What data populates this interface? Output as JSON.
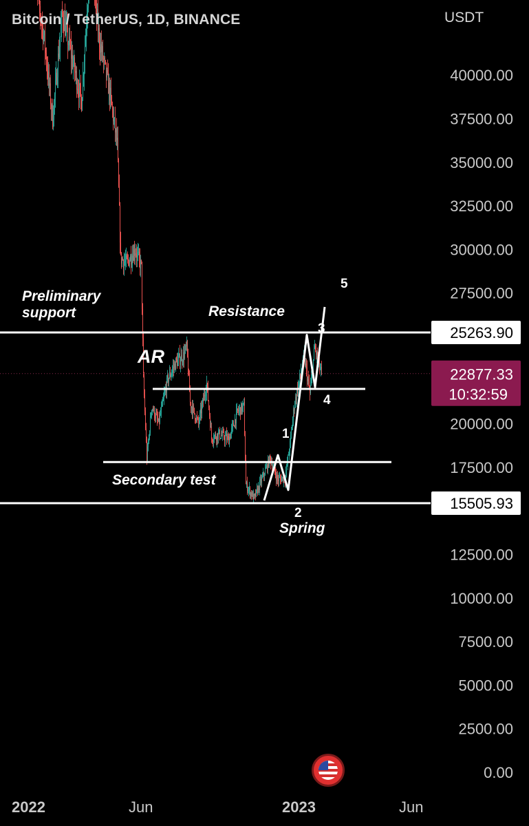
{
  "header": {
    "title": "Bitcoin / TetherUS, 1D, BINANCE",
    "unit": "USDT"
  },
  "colors": {
    "background": "#000000",
    "up": "#26a69a",
    "down": "#ef5350",
    "annotation": "#ffffff",
    "axis_text": "#c9c9c9",
    "current_price_bg": "#8b1a4f"
  },
  "chart_data": {
    "type": "candlestick",
    "symbol": "Bitcoin / TetherUS",
    "timeframe": "1D",
    "exchange": "BINANCE",
    "y_axis": {
      "unit": "USDT",
      "ticks": [
        "40000.00",
        "37500.00",
        "35000.00",
        "32500.00",
        "30000.00",
        "27500.00",
        "20000.00",
        "17500.00",
        "12500.00",
        "10000.00",
        "7500.00",
        "5000.00",
        "2500.00",
        "0.00"
      ],
      "range": [
        0,
        42500
      ]
    },
    "x_axis": {
      "ticks": [
        "2022",
        "Jun",
        "2023",
        "Jun"
      ]
    },
    "price_path": [
      [
        "2022-01-03",
        46500
      ],
      [
        "2022-01-20",
        42000
      ],
      [
        "2022-02-01",
        37500
      ],
      [
        "2022-02-15",
        43500
      ],
      [
        "2022-03-01",
        41000
      ],
      [
        "2022-03-15",
        38500
      ],
      [
        "2022-03-28",
        47000
      ],
      [
        "2022-04-10",
        42000
      ],
      [
        "2022-04-25",
        39000
      ],
      [
        "2022-05-06",
        36000
      ],
      [
        "2022-05-11",
        29500
      ],
      [
        "2022-05-20",
        29200
      ],
      [
        "2022-06-01",
        30000
      ],
      [
        "2022-06-10",
        29000
      ],
      [
        "2022-06-13",
        22500
      ],
      [
        "2022-06-18",
        18000
      ],
      [
        "2022-06-25",
        21000
      ],
      [
        "2022-07-05",
        20000
      ],
      [
        "2022-07-18",
        22500
      ],
      [
        "2022-07-30",
        23500
      ],
      [
        "2022-08-10",
        23900
      ],
      [
        "2022-08-15",
        24400
      ],
      [
        "2022-08-20",
        21200
      ],
      [
        "2022-09-01",
        20000
      ],
      [
        "2022-09-13",
        22300
      ],
      [
        "2022-09-20",
        19200
      ],
      [
        "2022-10-01",
        19400
      ],
      [
        "2022-10-15",
        19100
      ],
      [
        "2022-10-28",
        20700
      ],
      [
        "2022-11-06",
        21000
      ],
      [
        "2022-11-09",
        16500
      ],
      [
        "2022-11-21",
        15700
      ],
      [
        "2022-12-05",
        17100
      ],
      [
        "2022-12-14",
        18000
      ],
      [
        "2022-12-25",
        16800
      ],
      [
        "2023-01-05",
        16900
      ],
      [
        "2023-01-12",
        18800
      ],
      [
        "2023-01-18",
        21000
      ],
      [
        "2023-01-28",
        23000
      ],
      [
        "2023-02-02",
        23800
      ],
      [
        "2023-02-10",
        21700
      ],
      [
        "2023-02-17",
        24400
      ],
      [
        "2023-02-24",
        23200
      ],
      [
        "2023-02-27",
        22877
      ]
    ],
    "current_price": {
      "value": "22877.33",
      "countdown": "10:32:59"
    },
    "levels": [
      {
        "name": "resistance",
        "value": 25263.9,
        "label": "25263.90"
      },
      {
        "name": "low",
        "value": 15505.93,
        "label": "15505.93"
      },
      {
        "name": "mid-range",
        "value": 22000
      },
      {
        "name": "secondary-test",
        "value": 17800
      }
    ],
    "annotations": {
      "preliminary": "Preliminary",
      "support": "support",
      "resistance": "Resistance",
      "ar": "AR",
      "secondary_test": "Secondary test",
      "spring": "Spring",
      "wave_1": "1",
      "wave_2": "2",
      "wave_3": "3",
      "wave_4": "4",
      "wave_5": "5"
    },
    "projection": [
      [
        "2022-12-05",
        15600
      ],
      [
        "2022-12-25",
        18200
      ],
      [
        "2023-01-09",
        16200
      ],
      [
        "2023-02-05",
        25100
      ],
      [
        "2023-02-17",
        22100
      ],
      [
        "2023-03-03",
        26700
      ]
    ]
  }
}
